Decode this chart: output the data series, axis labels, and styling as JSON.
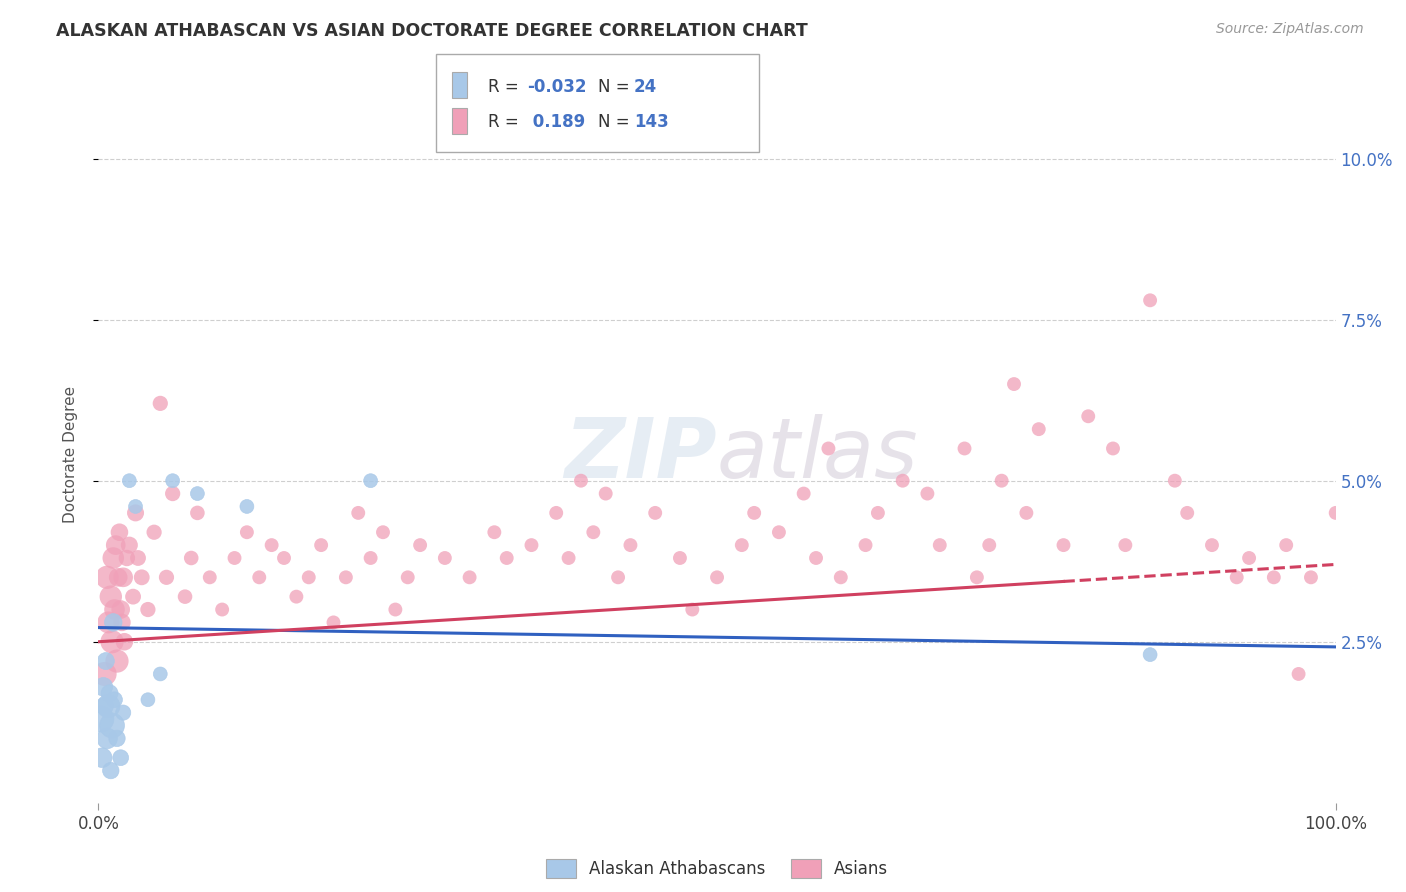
{
  "title": "ALASKAN ATHABASCAN VS ASIAN DOCTORATE DEGREE CORRELATION CHART",
  "source": "Source: ZipAtlas.com",
  "ylabel": "Doctorate Degree",
  "xlim": [
    0,
    100
  ],
  "ylim": [
    0,
    10.8
  ],
  "xtick_labels": [
    "0.0%",
    "100.0%"
  ],
  "ytick_values": [
    2.5,
    5.0,
    7.5,
    10.0
  ],
  "ytick_labels": [
    "2.5%",
    "5.0%",
    "7.5%",
    "10.0%"
  ],
  "legend_label_blue": "Alaskan Athabascans",
  "legend_label_pink": "Asians",
  "color_blue": "#a8c8e8",
  "color_pink": "#f0a0b8",
  "color_blue_line": "#3060c0",
  "color_pink_line": "#d04060",
  "background_color": "#ffffff",
  "grid_color": "#bbbbbb",
  "blue_r": "-0.032",
  "blue_n": "24",
  "pink_r": "0.189",
  "pink_n": "143",
  "blue_line_x0": 0,
  "blue_line_y0": 2.72,
  "blue_line_x1": 100,
  "blue_line_y1": 2.42,
  "pink_line_x0": 0,
  "pink_line_y0": 2.5,
  "pink_line_x1": 100,
  "pink_line_y1": 3.7,
  "pink_dash_start": 78,
  "blue_scatter_x": [
    0.2,
    0.3,
    0.4,
    0.5,
    0.6,
    0.7,
    0.8,
    0.9,
    1.0,
    1.1,
    1.2,
    1.3,
    1.5,
    1.8,
    2.0,
    2.5,
    3.0,
    4.0,
    5.0,
    6.0,
    8.0,
    12.0,
    22.0,
    85.0
  ],
  "blue_scatter_y": [
    1.3,
    0.7,
    1.8,
    1.5,
    2.2,
    1.0,
    1.5,
    1.7,
    0.5,
    1.2,
    2.8,
    1.6,
    1.0,
    0.7,
    1.4,
    5.0,
    4.6,
    1.6,
    2.0,
    5.0,
    4.8,
    4.6,
    5.0,
    2.3
  ],
  "blue_scatter_sizes": [
    350,
    200,
    180,
    160,
    150,
    220,
    280,
    150,
    140,
    320,
    160,
    130,
    140,
    130,
    120,
    100,
    100,
    100,
    100,
    100,
    100,
    100,
    100,
    100
  ],
  "pink_scatter_x": [
    0.5,
    0.7,
    0.8,
    1.0,
    1.1,
    1.2,
    1.3,
    1.4,
    1.5,
    1.6,
    1.7,
    1.8,
    1.9,
    2.0,
    2.1,
    2.3,
    2.5,
    2.8,
    3.0,
    3.2,
    3.5,
    4.0,
    4.5,
    5.0,
    5.5,
    6.0,
    7.0,
    7.5,
    8.0,
    9.0,
    10.0,
    11.0,
    12.0,
    13.0,
    14.0,
    15.0,
    16.0,
    17.0,
    18.0,
    19.0,
    20.0,
    21.0,
    22.0,
    23.0,
    24.0,
    25.0,
    26.0,
    28.0,
    30.0,
    32.0,
    33.0,
    35.0,
    37.0,
    38.0,
    39.0,
    40.0,
    41.0,
    42.0,
    43.0,
    45.0,
    47.0,
    48.0,
    50.0,
    52.0,
    53.0,
    55.0,
    57.0,
    58.0,
    59.0,
    60.0,
    62.0,
    63.0,
    65.0,
    67.0,
    68.0,
    70.0,
    71.0,
    72.0,
    73.0,
    74.0,
    75.0,
    76.0,
    78.0,
    80.0,
    82.0,
    83.0,
    85.0,
    87.0,
    88.0,
    90.0,
    92.0,
    93.0,
    95.0,
    96.0,
    97.0,
    98.0,
    100.0
  ],
  "pink_scatter_y": [
    2.0,
    3.5,
    2.8,
    3.2,
    2.5,
    3.8,
    3.0,
    4.0,
    2.2,
    3.5,
    4.2,
    3.0,
    2.8,
    3.5,
    2.5,
    3.8,
    4.0,
    3.2,
    4.5,
    3.8,
    3.5,
    3.0,
    4.2,
    6.2,
    3.5,
    4.8,
    3.2,
    3.8,
    4.5,
    3.5,
    3.0,
    3.8,
    4.2,
    3.5,
    4.0,
    3.8,
    3.2,
    3.5,
    4.0,
    2.8,
    3.5,
    4.5,
    3.8,
    4.2,
    3.0,
    3.5,
    4.0,
    3.8,
    3.5,
    4.2,
    3.8,
    4.0,
    4.5,
    3.8,
    5.0,
    4.2,
    4.8,
    3.5,
    4.0,
    4.5,
    3.8,
    3.0,
    3.5,
    4.0,
    4.5,
    4.2,
    4.8,
    3.8,
    5.5,
    3.5,
    4.0,
    4.5,
    5.0,
    4.8,
    4.0,
    5.5,
    3.5,
    4.0,
    5.0,
    6.5,
    4.5,
    5.8,
    4.0,
    6.0,
    5.5,
    4.0,
    7.8,
    5.0,
    4.5,
    4.0,
    3.5,
    3.8,
    3.5,
    4.0,
    2.0,
    3.5,
    4.5
  ],
  "pink_scatter_sizes": [
    300,
    280,
    250,
    260,
    280,
    240,
    220,
    200,
    280,
    180,
    160,
    180,
    160,
    200,
    160,
    140,
    150,
    130,
    150,
    130,
    130,
    120,
    120,
    120,
    120,
    120,
    110,
    110,
    110,
    100,
    100,
    100,
    100,
    100,
    100,
    100,
    100,
    100,
    100,
    100,
    100,
    100,
    100,
    100,
    100,
    100,
    100,
    100,
    100,
    100,
    100,
    100,
    100,
    100,
    100,
    100,
    100,
    100,
    100,
    100,
    100,
    100,
    100,
    100,
    100,
    100,
    100,
    100,
    100,
    100,
    100,
    100,
    100,
    100,
    100,
    100,
    100,
    100,
    100,
    100,
    100,
    100,
    100,
    100,
    100,
    100,
    100,
    100,
    100,
    100,
    100,
    100,
    100,
    100,
    100,
    100,
    100
  ]
}
